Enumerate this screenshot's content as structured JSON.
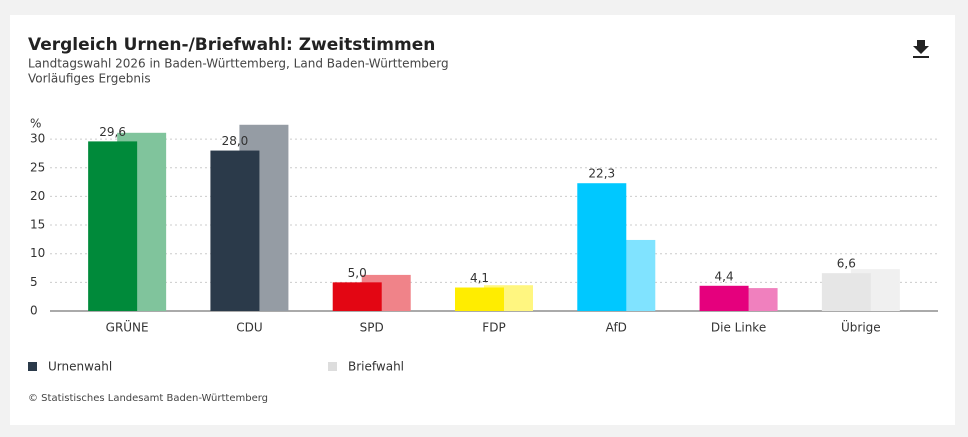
{
  "chart_data": {
    "type": "bar",
    "title": "Vergleich Urnen-/Briefwahl: Zweitstimmen",
    "subtitle": [
      "Landtagswahl 2026 in Baden-Württemberg, Land Baden-Württemberg",
      "Vorläufiges Ergebnis"
    ],
    "y_unit": "%",
    "categories": [
      "GRÜNE",
      "CDU",
      "SPD",
      "FDP",
      "AfD",
      "Die Linke",
      "Übrige"
    ],
    "series": [
      {
        "name": "Urnenwahl",
        "color": "#2b3a4a",
        "colors": [
          "#008a3a",
          "#2b3a4a",
          "#e30613",
          "#ffed00",
          "#00c8ff",
          "#e5007d",
          "#e6e6e6"
        ],
        "values": [
          29.6,
          28.0,
          5.0,
          4.1,
          22.3,
          4.4,
          6.6
        ],
        "value_labels": [
          "29,6",
          "28,0",
          "5,0",
          "4,1",
          "22,3",
          "4,4",
          "6,6"
        ]
      },
      {
        "name": "Briefwahl",
        "color": "#dddddd",
        "colors": [
          "#80c49c",
          "#959ca4",
          "#f08389",
          "#fff680",
          "#80e3ff",
          "#f080be",
          "#f0f0f0"
        ],
        "values": [
          31.1,
          32.5,
          6.3,
          4.5,
          12.4,
          4.0,
          7.3
        ]
      }
    ],
    "ylim": [
      0,
      33
    ],
    "yticks": [
      0,
      5,
      10,
      15,
      20,
      25,
      30
    ],
    "grid": true,
    "source": "© Statistisches Landesamt Baden-Württemberg"
  }
}
